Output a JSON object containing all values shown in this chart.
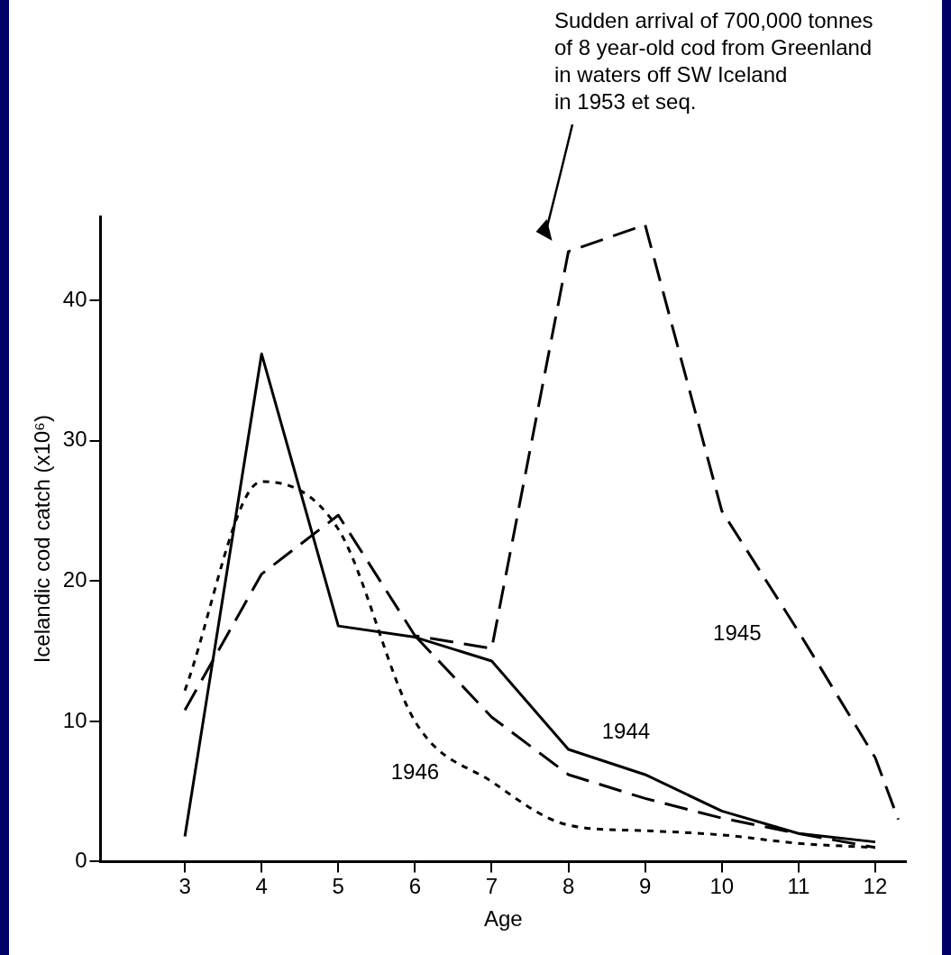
{
  "chart_data": {
    "type": "line",
    "xlabel": "Age",
    "ylabel": "Icelandic cod catch (x10⁶)",
    "annotations": [
      "Sudden arrival of 700,000 tonnes\nof 8 year-old cod from Greenland\nin waters off SW Iceland\nin 1953 et seq."
    ],
    "xlim": [
      1.9,
      12.4
    ],
    "xticks": [
      3,
      4,
      5,
      6,
      7,
      8,
      9,
      10,
      11,
      12
    ],
    "ylim": [
      0,
      46
    ],
    "yticks": [
      0,
      10,
      20,
      30,
      40
    ],
    "grid": false,
    "legend": false,
    "series": [
      {
        "name": "1944",
        "color": "#000000",
        "line_style": "solid",
        "x": [
          3,
          4,
          5,
          6,
          7,
          8,
          9,
          10,
          11,
          12
        ],
        "values": [
          1.8,
          36.2,
          16.8,
          16,
          14.3,
          8,
          6.2,
          3.6,
          2,
          1.4
        ]
      },
      {
        "name": "1945",
        "color": "#000000",
        "line_style": "dashed",
        "x": [
          3,
          4,
          5,
          6,
          7,
          8,
          9,
          10,
          11,
          12,
          12.3
        ],
        "values": [
          10.8,
          20.5,
          24.7,
          16.1,
          15.2,
          43.5,
          45.4,
          25,
          16.4,
          7.4,
          3
        ]
      },
      {
        "color": "#000000",
        "line_style": "dashed",
        "x": [
          6,
          7,
          8,
          9,
          10,
          11,
          12
        ],
        "values": [
          16.1,
          10.3,
          6.2,
          4.5,
          3.1,
          2,
          1
        ]
      },
      {
        "name": "1946",
        "color": "#000000",
        "line_style": "dotted",
        "x": [
          3,
          4,
          5,
          6,
          7,
          8,
          9,
          10,
          11,
          12
        ],
        "values": [
          12.2,
          27.1,
          23.7,
          10,
          5.7,
          2.6,
          2.2,
          1.9,
          1.3,
          1
        ]
      }
    ]
  }
}
